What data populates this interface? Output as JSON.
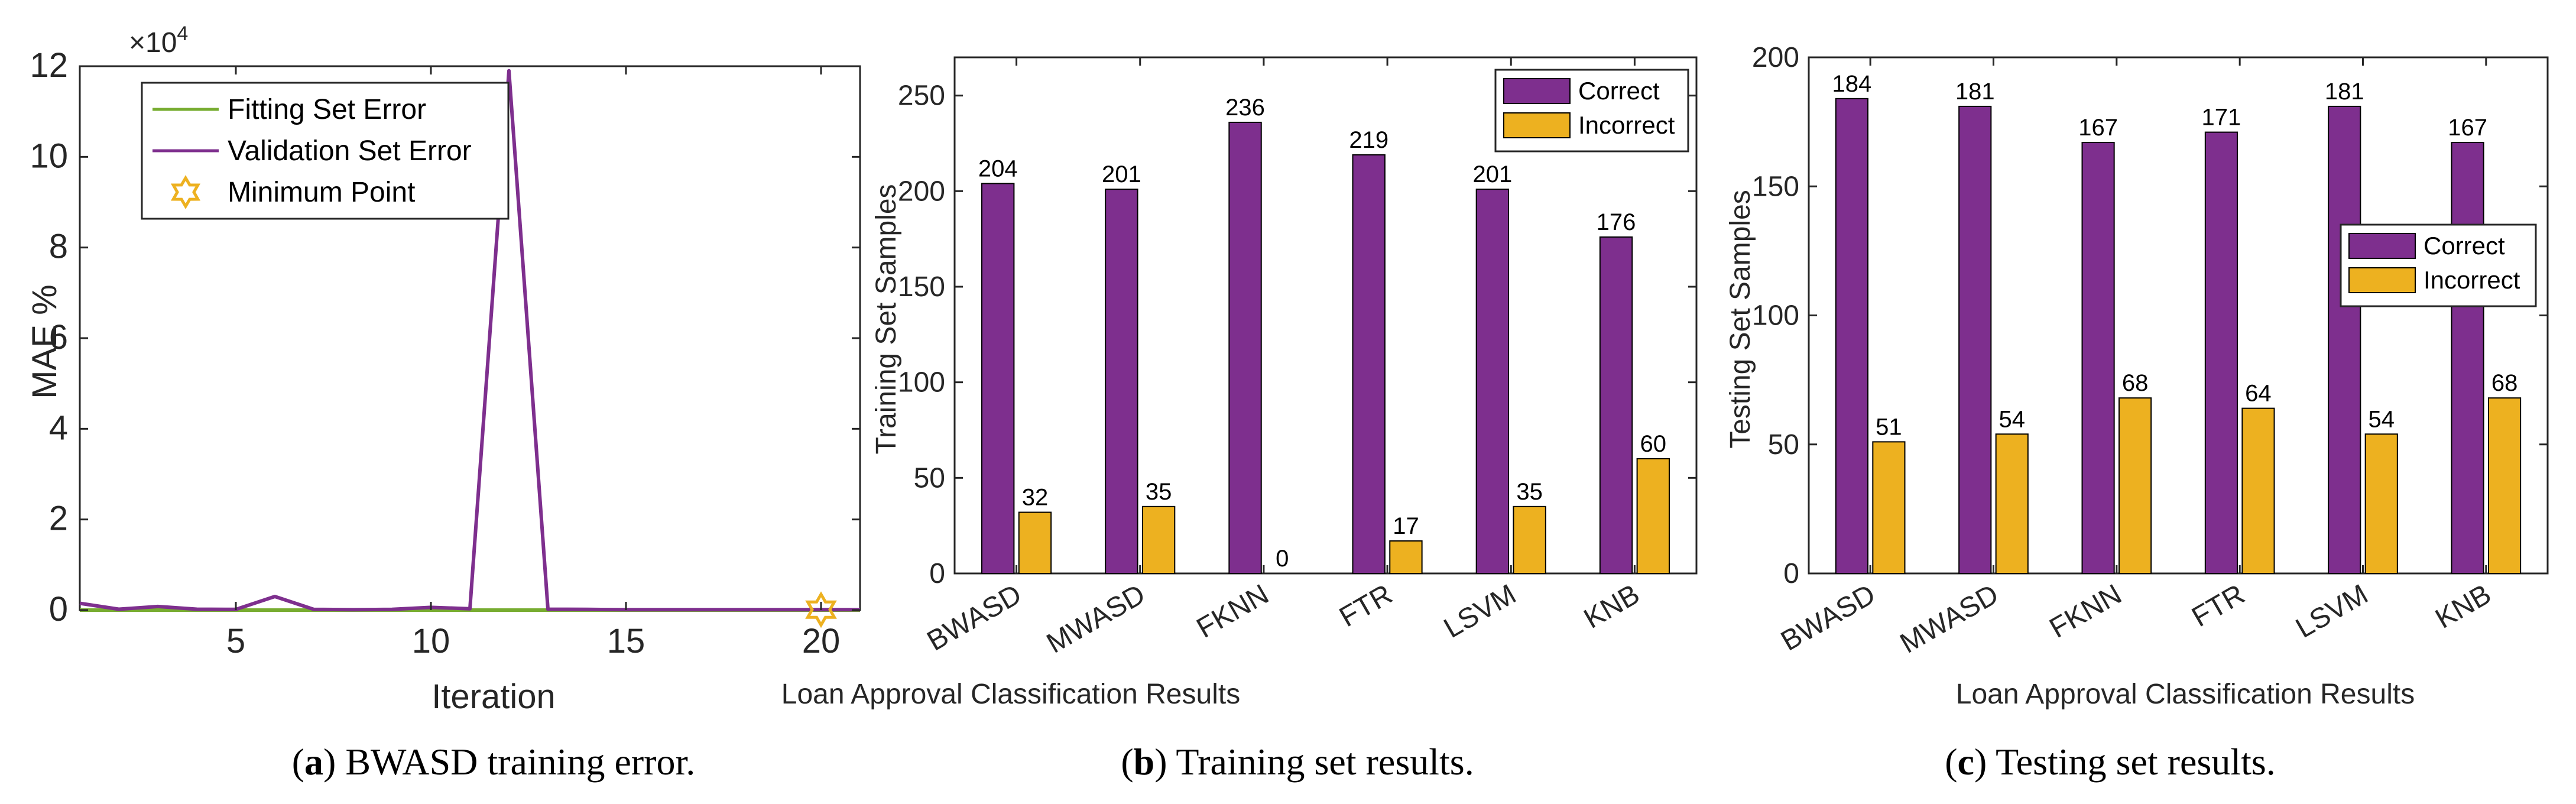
{
  "colors": {
    "purple": "#7E2F8E",
    "yellow": "#EDB120",
    "green": "#77AC30",
    "axis": "#262626"
  },
  "captions": [
    {
      "letter": "a",
      "text": " BWASD training error."
    },
    {
      "letter": "b",
      "text": " Training set results."
    },
    {
      "letter": "c",
      "text": " Testing set results."
    }
  ],
  "chart_data": [
    {
      "type": "line",
      "xlabel": "Iteration",
      "ylabel": "MAE %",
      "xlim": [
        1,
        21
      ],
      "ylim": [
        0,
        120000
      ],
      "exponent_label": "×10",
      "exponent_power": "4",
      "xticks": [
        5,
        10,
        15,
        20
      ],
      "yticks": [
        0,
        20000,
        40000,
        60000,
        80000,
        100000,
        120000
      ],
      "ytick_labels": [
        "0",
        "2",
        "4",
        "6",
        "8",
        "10",
        "12"
      ],
      "legend": [
        "Fitting Set Error",
        "Validation Set Error",
        "Minimum Point"
      ],
      "series": [
        {
          "name": "Fitting Set Error",
          "color": "#77AC30",
          "x": [
            1,
            2,
            3,
            4,
            5,
            6,
            7,
            8,
            9,
            10,
            11,
            12,
            13,
            14,
            15,
            16,
            17,
            18,
            19,
            20,
            21
          ],
          "y": [
            0,
            0,
            0,
            0,
            0,
            0,
            0,
            0,
            0,
            0,
            0,
            0,
            0,
            0,
            0,
            0,
            0,
            0,
            0,
            0,
            0
          ]
        },
        {
          "name": "Validation Set Error",
          "color": "#7E2F8E",
          "x": [
            1,
            2,
            3,
            4,
            5,
            6,
            7,
            8,
            9,
            10,
            11,
            12,
            13,
            14,
            15,
            16,
            17,
            18,
            19,
            20,
            21
          ],
          "y": [
            1500,
            200,
            800,
            200,
            150,
            3000,
            150,
            100,
            150,
            600,
            300,
            119000,
            200,
            150,
            100,
            100,
            100,
            100,
            100,
            100,
            100
          ]
        }
      ],
      "minimum_point": {
        "x": 20,
        "y": 100
      }
    },
    {
      "type": "bar",
      "title": "",
      "xlabel": "Loan Approval Classification Results",
      "ylabel": "Training Set Samples",
      "ylim": [
        0,
        270
      ],
      "yticks": [
        0,
        50,
        100,
        150,
        200,
        250
      ],
      "categories": [
        "BWASD",
        "MWASD",
        "FKNN",
        "FTR",
        "LSVM",
        "KNB"
      ],
      "series": [
        {
          "name": "Correct",
          "color": "#7E2F8E",
          "values": [
            204,
            201,
            236,
            219,
            201,
            176
          ]
        },
        {
          "name": "Incorrect",
          "color": "#EDB120",
          "values": [
            32,
            35,
            0,
            17,
            35,
            60
          ]
        }
      ],
      "legend": [
        "Correct",
        "Incorrect"
      ],
      "legend_position": "top-right"
    },
    {
      "type": "bar",
      "title": "",
      "xlabel": "Loan Approval Classification Results",
      "ylabel": "Testing Set Samples",
      "ylim": [
        0,
        200
      ],
      "yticks": [
        0,
        50,
        100,
        150,
        200
      ],
      "categories": [
        "BWASD",
        "MWASD",
        "FKNN",
        "FTR",
        "LSVM",
        "KNB"
      ],
      "series": [
        {
          "name": "Correct",
          "color": "#7E2F8E",
          "values": [
            184,
            181,
            167,
            171,
            181,
            167
          ]
        },
        {
          "name": "Incorrect",
          "color": "#EDB120",
          "values": [
            51,
            54,
            68,
            64,
            54,
            68
          ]
        }
      ],
      "legend": [
        "Correct",
        "Incorrect"
      ],
      "legend_position": "right"
    }
  ]
}
